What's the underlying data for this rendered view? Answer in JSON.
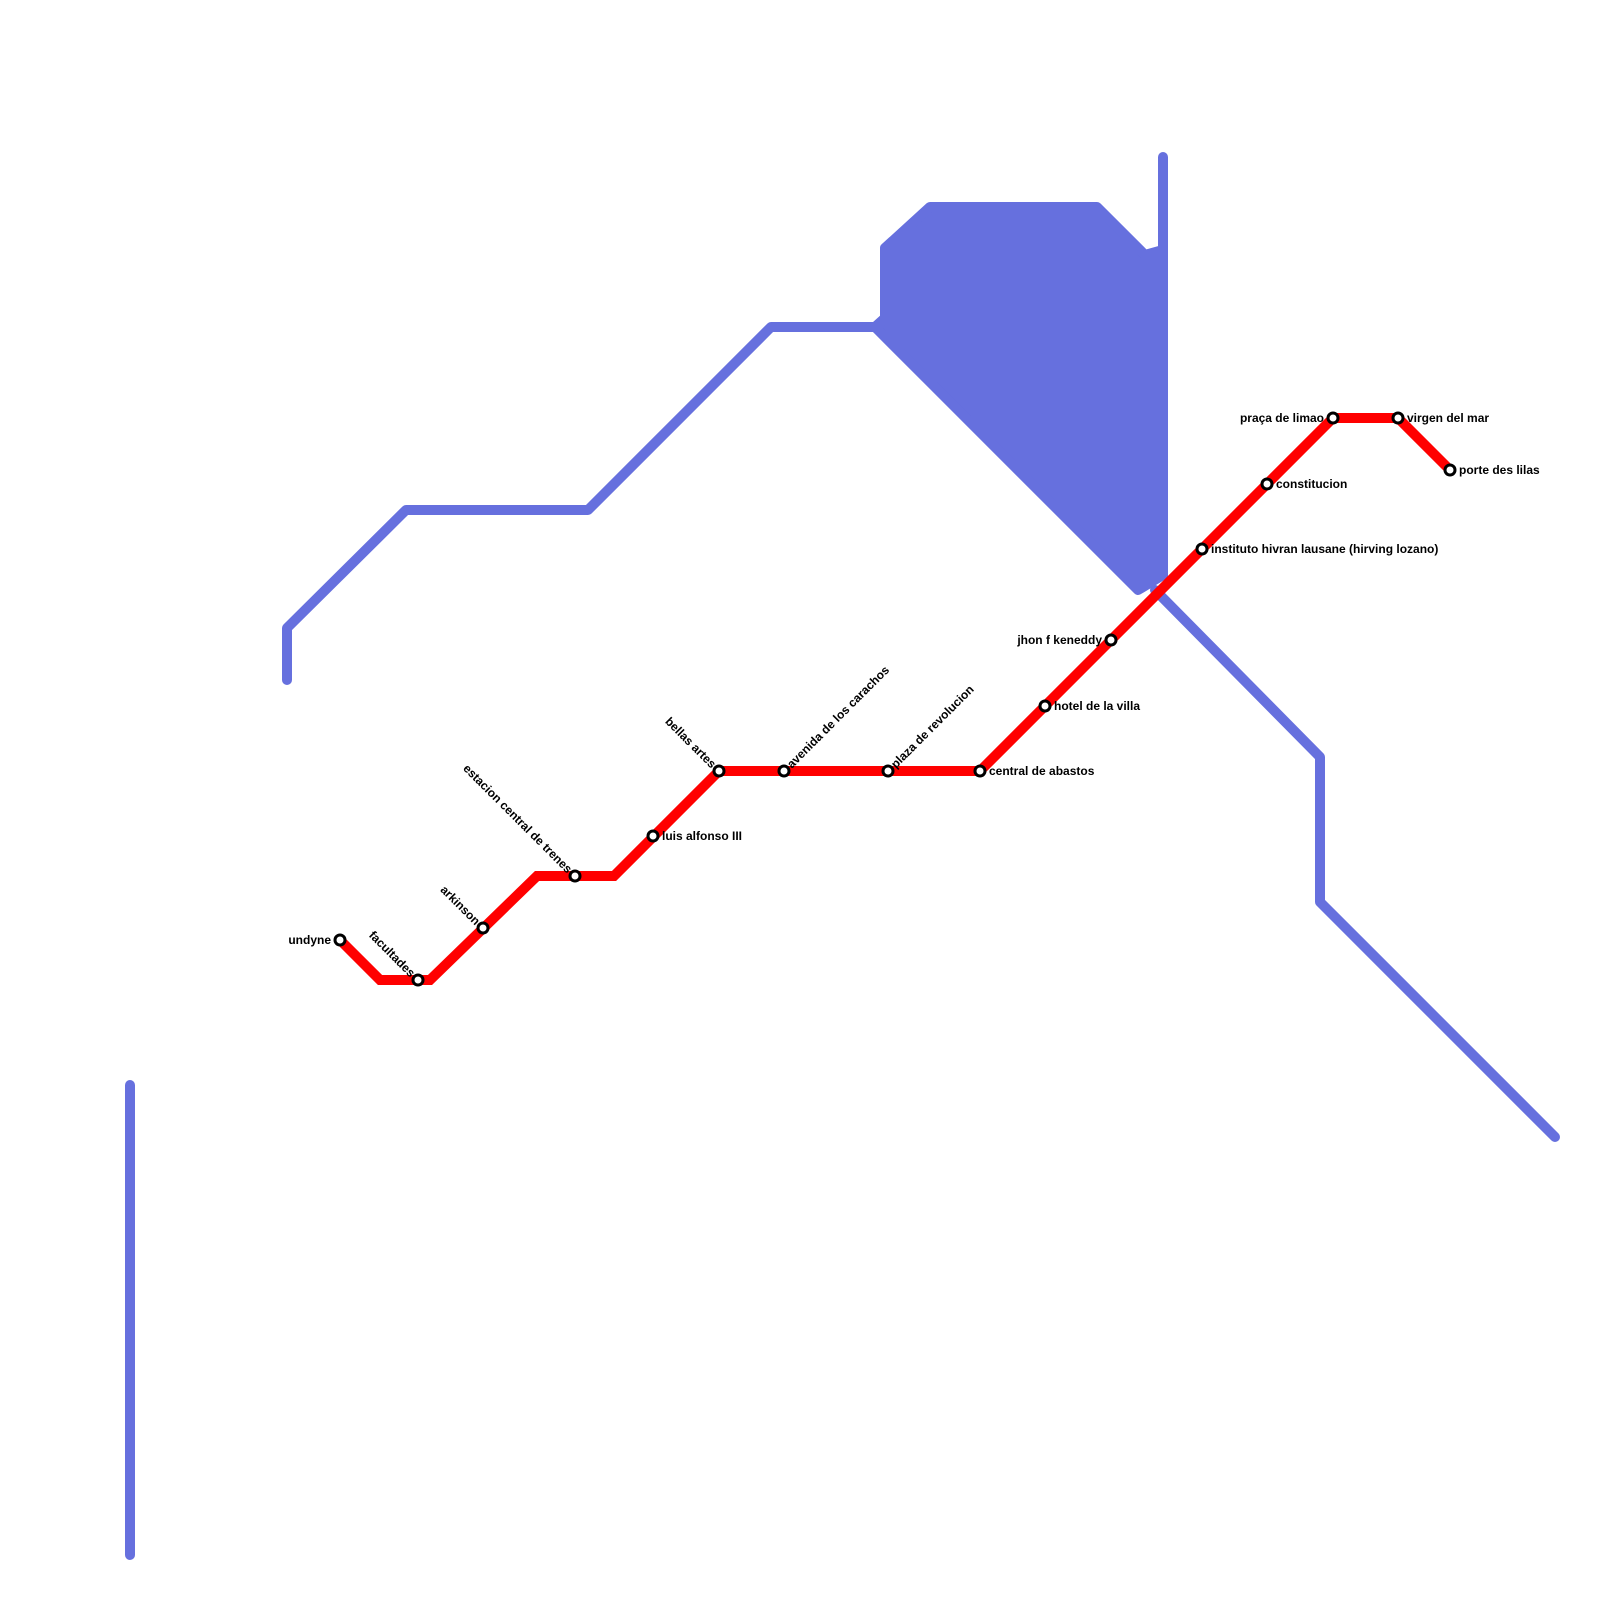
{
  "colors": {
    "red_line": "#ff0000",
    "blue_line": "#6670de",
    "station_fill": "#ffffff",
    "station_stroke": "#000000"
  },
  "red_line": {
    "stations": [
      {
        "name": "undyne"
      },
      {
        "name": "facultades"
      },
      {
        "name": "arkinson"
      },
      {
        "name": "estacion central de trenes"
      },
      {
        "name": "luis alfonso III"
      },
      {
        "name": "bellas artes"
      },
      {
        "name": "avenida de los carachos"
      },
      {
        "name": "plaza de revolucion"
      },
      {
        "name": "central de abastos"
      },
      {
        "name": "hotel de la villa"
      },
      {
        "name": "jhon f keneddy"
      },
      {
        "name": "instituto hivran lausane (hirving lozano)"
      },
      {
        "name": "constitucion"
      },
      {
        "name": "praça de limao"
      },
      {
        "name": "virgen del mar"
      },
      {
        "name": "porte des lilas"
      }
    ]
  }
}
